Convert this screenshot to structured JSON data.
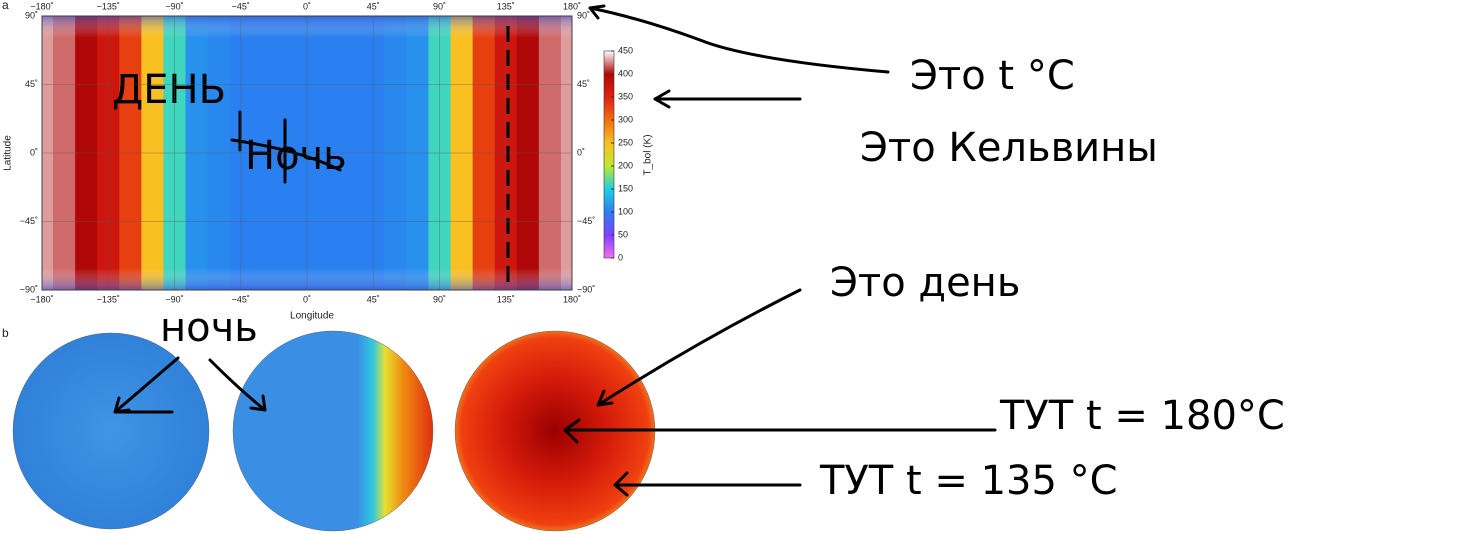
{
  "chart_data": {
    "type": "heatmap",
    "panel_labels": [
      "a",
      "b"
    ],
    "xlabel": "Longitude",
    "ylabel": "Latitude",
    "colorbar_label": "T_bol (K)",
    "x": [
      -180,
      -165,
      -150,
      -135,
      -120,
      -105,
      -90,
      -75,
      -60,
      -45,
      -30,
      -15,
      0,
      15,
      30,
      45,
      60,
      75,
      90,
      105,
      120,
      135,
      150,
      165,
      180
    ],
    "values": [
      430,
      420,
      400,
      370,
      330,
      250,
      160,
      110,
      105,
      100,
      100,
      100,
      100,
      100,
      100,
      100,
      105,
      110,
      160,
      250,
      330,
      370,
      400,
      420,
      430
    ],
    "xlim": [
      -180,
      180
    ],
    "ylim": [
      -90,
      90
    ],
    "clim": [
      0,
      450
    ],
    "colormap": [
      "#f070f0",
      "#8040ff",
      "#2a80f0",
      "#20d0e0",
      "#c0e830",
      "#f8c020",
      "#f07010",
      "#e02010",
      "#b00808",
      "#ffffff"
    ],
    "xticks": [
      {
        "value": -180,
        "label": "−180˚"
      },
      {
        "value": -135,
        "label": "−135˚"
      },
      {
        "value": -90,
        "label": "−90˚"
      },
      {
        "value": -45,
        "label": "−45˚"
      },
      {
        "value": 0,
        "label": "0˚"
      },
      {
        "value": 45,
        "label": "45˚"
      },
      {
        "value": 90,
        "label": "90˚"
      },
      {
        "value": 135,
        "label": "135˚"
      },
      {
        "value": 180,
        "label": "180˚"
      }
    ],
    "yticks": [
      {
        "value": 90,
        "label": "90˚"
      },
      {
        "value": 45,
        "label": "45˚"
      },
      {
        "value": 0,
        "label": "0˚"
      },
      {
        "value": -45,
        "label": "−45˚"
      },
      {
        "value": -90,
        "label": "−90˚"
      }
    ],
    "cticks": [
      0,
      50,
      100,
      150,
      200,
      250,
      300,
      350,
      400,
      450
    ],
    "annotations": [
      "Это t °C",
      "Это Кельвины",
      "ДЕНЬ",
      "Ночь",
      "Это день",
      "ночь",
      "ТУТ t = 180°C",
      "ТУТ t = 135 °C"
    ]
  }
}
